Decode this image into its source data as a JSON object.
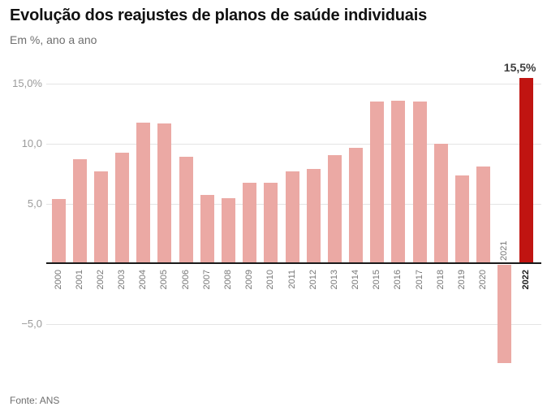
{
  "header": {
    "title": "Evolução dos reajustes de planos de saúde individuais",
    "subtitle": "Em %, ano a ano"
  },
  "footer": {
    "source": "Fonte: ANS"
  },
  "colors": {
    "bar": "#eba9a4",
    "bar_highlight": "#c01411",
    "axis": "#1a1a1a",
    "grid": "#e4e4e4",
    "y_label": "#9a9a9a",
    "x_label": "#777777",
    "annotation": "#3d3d3d"
  },
  "chart_data": {
    "type": "bar",
    "title": "Evolução dos reajustes de planos de saúde individuais",
    "subtitle": "Em %, ano a ano",
    "unit": "%",
    "categories": [
      "2000",
      "2001",
      "2002",
      "2003",
      "2004",
      "2005",
      "2006",
      "2007",
      "2008",
      "2009",
      "2010",
      "2011",
      "2012",
      "2013",
      "2014",
      "2015",
      "2016",
      "2017",
      "2018",
      "2019",
      "2020",
      "2021",
      "2022"
    ],
    "values": [
      5.42,
      8.71,
      7.69,
      9.27,
      11.75,
      11.69,
      8.89,
      5.76,
      5.48,
      6.76,
      6.73,
      7.69,
      7.93,
      9.04,
      9.65,
      13.55,
      13.57,
      13.55,
      10.0,
      7.35,
      8.14,
      -8.19,
      15.5
    ],
    "highlight_category": "2022",
    "annotation": {
      "category": "2022",
      "text": "15,5%"
    },
    "y_ticks": [
      {
        "value": 15,
        "label": "15,0%"
      },
      {
        "value": 10,
        "label": "10,0"
      },
      {
        "value": 5,
        "label": "5,0"
      },
      {
        "value": -5,
        "label": "−5,0"
      }
    ],
    "ylim": [
      -9,
      16
    ],
    "grid": true,
    "source": "Fonte: ANS"
  }
}
